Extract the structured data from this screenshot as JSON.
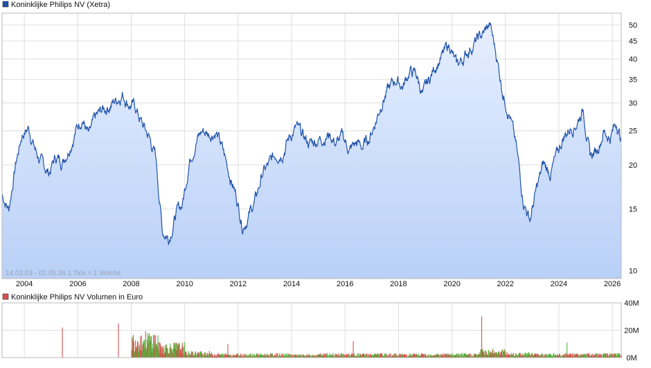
{
  "chart_data": [
    {
      "type": "area",
      "legend": "Koninklijke Philips NV (Xetra)",
      "info": "14.03.03 - 02.05.26   1 Tick = 1 Woche",
      "y_scale": "log",
      "ylim": [
        9.5,
        54
      ],
      "y_ticks": [
        "10",
        "15",
        "20",
        "25",
        "30",
        "35",
        "40",
        "45",
        "50"
      ],
      "x_ticks": [
        "2004",
        "2006",
        "2008",
        "2010",
        "2012",
        "2014",
        "2016",
        "2018",
        "2020",
        "2022",
        "2024",
        "2026"
      ],
      "grid": true,
      "legend_position": "top-left",
      "x": [
        "2003-03",
        "2003-06",
        "2003-09",
        "2003-12",
        "2004-03",
        "2004-06",
        "2004-09",
        "2004-12",
        "2005-03",
        "2005-06",
        "2005-09",
        "2005-12",
        "2006-03",
        "2006-06",
        "2006-09",
        "2006-12",
        "2007-03",
        "2007-06",
        "2007-09",
        "2007-12",
        "2008-03",
        "2008-06",
        "2008-09",
        "2008-12",
        "2009-03",
        "2009-06",
        "2009-09",
        "2009-12",
        "2010-03",
        "2010-06",
        "2010-09",
        "2010-12",
        "2011-03",
        "2011-06",
        "2011-09",
        "2011-12",
        "2012-03",
        "2012-06",
        "2012-09",
        "2012-12",
        "2013-03",
        "2013-06",
        "2013-09",
        "2013-12",
        "2014-03",
        "2014-06",
        "2014-09",
        "2014-12",
        "2015-03",
        "2015-06",
        "2015-09",
        "2015-12",
        "2016-03",
        "2016-06",
        "2016-09",
        "2016-12",
        "2017-03",
        "2017-06",
        "2017-09",
        "2017-12",
        "2018-03",
        "2018-06",
        "2018-09",
        "2018-12",
        "2019-03",
        "2019-06",
        "2019-09",
        "2019-12",
        "2020-03",
        "2020-06",
        "2020-09",
        "2020-12",
        "2021-03",
        "2021-06",
        "2021-09",
        "2021-12",
        "2022-03",
        "2022-06",
        "2022-09",
        "2022-12",
        "2023-03",
        "2023-06",
        "2023-09",
        "2023-12",
        "2024-03",
        "2024-06",
        "2024-09",
        "2024-12",
        "2025-03",
        "2025-06",
        "2025-09",
        "2025-12",
        "2026-03",
        "2026-05"
      ],
      "values": [
        16.5,
        15.0,
        20.0,
        24.5,
        25.5,
        22.0,
        20.0,
        19.0,
        21.0,
        20.5,
        22.5,
        25.0,
        27.5,
        24.0,
        27.0,
        28.5,
        29.5,
        30.5,
        32.0,
        30.0,
        29.0,
        26.0,
        24.0,
        21.0,
        13.0,
        12.5,
        14.5,
        15.5,
        20.5,
        23.5,
        25.0,
        24.5,
        25.0,
        22.0,
        19.0,
        16.5,
        13.5,
        14.5,
        16.0,
        19.0,
        20.0,
        21.5,
        22.0,
        24.0,
        25.5,
        24.0,
        23.0,
        23.5,
        24.0,
        24.5,
        23.0,
        24.0,
        22.0,
        23.0,
        22.5,
        24.0,
        27.0,
        31.0,
        33.0,
        35.0,
        33.5,
        37.0,
        36.0,
        31.5,
        35.0,
        39.0,
        41.0,
        44.0,
        38.0,
        40.0,
        43.0,
        45.0,
        47.0,
        50.0,
        41.0,
        32.0,
        28.0,
        22.0,
        16.0,
        14.0,
        17.0,
        20.0,
        19.0,
        21.0,
        24.0,
        25.5,
        26.5,
        29.0,
        21.0,
        22.0,
        25.0,
        24.0,
        26.5,
        23.5
      ]
    },
    {
      "type": "bar",
      "legend": "Koninklijke Philips NV Volumen in Euro",
      "y_ticks": [
        "0M",
        "20M",
        "40M"
      ],
      "ylim": [
        0,
        40
      ],
      "legend_position": "top-left",
      "colors": {
        "up": "#55b33b",
        "down": "#d94f4f"
      },
      "x": [
        "2003",
        "2004",
        "2005",
        "2006",
        "2007",
        "2008",
        "2009",
        "2010",
        "2011",
        "2012",
        "2013",
        "2014",
        "2015",
        "2016",
        "2017",
        "2018",
        "2019",
        "2020",
        "2021",
        "2022",
        "2023",
        "2024",
        "2025",
        "2026"
      ],
      "values": [
        0,
        0,
        0,
        0,
        0,
        12,
        7,
        3,
        2,
        2,
        2,
        1.5,
        2,
        2,
        2,
        2,
        2,
        2,
        4,
        2.5,
        2,
        2,
        2,
        2
      ],
      "peaks": [
        22,
        25,
        10,
        12,
        30,
        11
      ]
    }
  ],
  "colors": {
    "line": "#1f52a9",
    "fill_top": "#e6efff",
    "fill_bottom": "#b9d0f7",
    "grid": "#dddddd",
    "legend_price": "#1f52a9",
    "legend_volume": "#d94f4f"
  }
}
